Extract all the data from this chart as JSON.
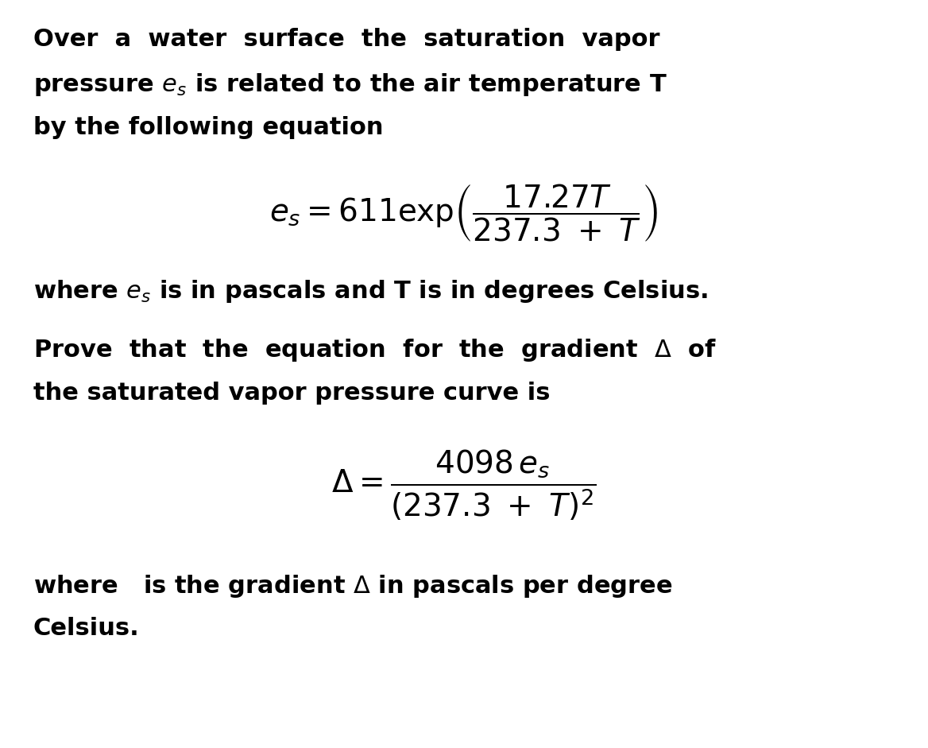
{
  "background_color": "#ffffff",
  "fig_width": 11.68,
  "fig_height": 9.41,
  "text_color": "#000000",
  "font_size_body": 26,
  "font_size_eq": 28,
  "font_family": "DejaVu Sans",
  "paragraph1": "Over  a  water  surface  the  saturation  vapor\npressure eₛ is related to the air temperature T\nby the following equation",
  "paragraph2": "where eₛ is in pascals and T is in degrees Celsius.",
  "paragraph3": "Prove  that  the  equation  for  the  gradient  Δ  of\nthe saturated vapor pressure curve is",
  "paragraph4": "where   is the gradient Δ in pascals per degree\nCelsius."
}
